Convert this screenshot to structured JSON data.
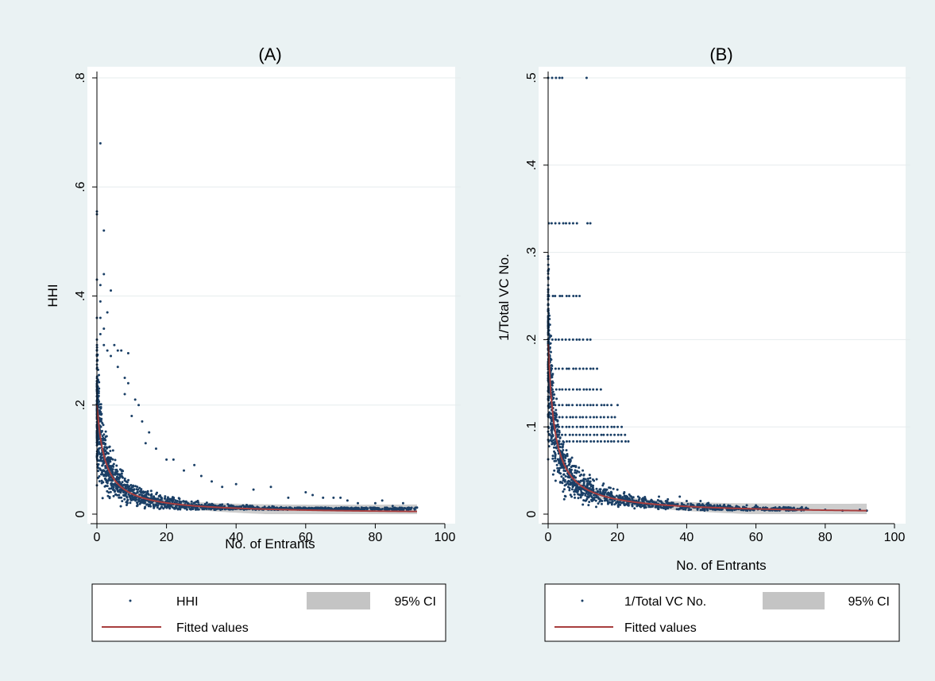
{
  "chart_data": [
    {
      "type": "scatter",
      "panel": "A",
      "title": "(A)",
      "xlabel": "No. of Entrants",
      "ylabel": "HHI",
      "xlim": [
        0,
        100
      ],
      "ylim": [
        0,
        0.8
      ],
      "x_ticks": [
        0,
        20,
        40,
        60,
        80,
        100
      ],
      "x_tick_labels": [
        "0",
        "20",
        "40",
        "60",
        "80",
        "100"
      ],
      "y_ticks": [
        0,
        0.2,
        0.4,
        0.6,
        0.8
      ],
      "y_tick_labels": [
        "0",
        ".2",
        ".4",
        ".6",
        ".8"
      ],
      "grid": "horizontal",
      "legend_position": "bottom",
      "legend": [
        "HHI",
        "95% CI",
        "Fitted values"
      ],
      "fit": {
        "form": "y = a/(x+b)",
        "a": 0.46,
        "b": 2.3,
        "x_range": [
          0,
          92
        ]
      },
      "series": [
        {
          "name": "HHI",
          "points": [
            [
              1,
              0.68
            ],
            [
              0,
              0.555
            ],
            [
              0,
              0.55
            ],
            [
              2,
              0.52
            ],
            [
              0,
              0.43
            ],
            [
              1,
              0.42
            ],
            [
              2,
              0.44
            ],
            [
              4,
              0.41
            ],
            [
              1,
              0.39
            ],
            [
              3,
              0.37
            ],
            [
              0,
              0.36
            ],
            [
              1,
              0.36
            ],
            [
              2,
              0.34
            ],
            [
              0,
              0.32
            ],
            [
              1,
              0.33
            ],
            [
              0,
              0.3
            ],
            [
              2,
              0.31
            ],
            [
              3,
              0.3
            ],
            [
              5,
              0.31
            ],
            [
              6,
              0.3
            ],
            [
              7,
              0.3
            ],
            [
              9,
              0.295
            ],
            [
              4,
              0.29
            ],
            [
              6,
              0.27
            ],
            [
              8,
              0.25
            ],
            [
              9,
              0.24
            ],
            [
              8,
              0.22
            ],
            [
              11,
              0.21
            ],
            [
              12,
              0.2
            ],
            [
              10,
              0.18
            ],
            [
              13,
              0.17
            ],
            [
              15,
              0.15
            ],
            [
              14,
              0.13
            ],
            [
              17,
              0.12
            ],
            [
              20,
              0.1
            ],
            [
              22,
              0.1
            ],
            [
              25,
              0.08
            ],
            [
              28,
              0.09
            ],
            [
              30,
              0.07
            ],
            [
              33,
              0.06
            ],
            [
              36,
              0.05
            ],
            [
              40,
              0.055
            ],
            [
              45,
              0.045
            ],
            [
              50,
              0.05
            ],
            [
              55,
              0.03
            ],
            [
              60,
              0.04
            ],
            [
              62,
              0.035
            ],
            [
              65,
              0.03
            ],
            [
              68,
              0.03
            ],
            [
              70,
              0.03
            ],
            [
              72,
              0.025
            ],
            [
              75,
              0.02
            ],
            [
              80,
              0.02
            ],
            [
              82,
              0.025
            ],
            [
              85,
              0.015
            ],
            [
              88,
              0.02
            ],
            [
              90,
              0.01
            ],
            [
              92,
              0.012
            ]
          ]
        }
      ]
    },
    {
      "type": "scatter",
      "panel": "B",
      "title": "(B)",
      "xlabel": "No. of Entrants",
      "ylabel": "1/Total VC No.",
      "xlim": [
        0,
        100
      ],
      "ylim": [
        0,
        0.5
      ],
      "x_ticks": [
        0,
        20,
        40,
        60,
        80,
        100
      ],
      "x_tick_labels": [
        "0",
        "20",
        "40",
        "60",
        "80",
        "100"
      ],
      "y_ticks": [
        0,
        0.1,
        0.2,
        0.3,
        0.4,
        0.5
      ],
      "y_tick_labels": [
        "0",
        ".1",
        ".2",
        ".3",
        ".4",
        ".5"
      ],
      "grid": "horizontal",
      "legend_position": "bottom",
      "legend": [
        "1/Total VC No.",
        "95% CI",
        "Fitted values"
      ],
      "fit": {
        "form": "y = a/(x+b)",
        "a": 0.37,
        "b": 1.9,
        "x_range": [
          0,
          92
        ]
      },
      "series": [
        {
          "name": "1/Total VC No.",
          "rows": [
            {
              "y": 0.5,
              "x": [
                0,
                1,
                2,
                3,
                4,
                11
              ]
            },
            {
              "y": 0.3333,
              "x": [
                0,
                1,
                2,
                3,
                4,
                5,
                6,
                7,
                8,
                11,
                12
              ]
            },
            {
              "y": 0.25,
              "x": [
                0,
                1,
                2,
                3,
                4,
                5,
                6,
                7,
                8,
                9
              ]
            },
            {
              "y": 0.2,
              "x": [
                0,
                1,
                2,
                3,
                4,
                5,
                6,
                7,
                8,
                9,
                10,
                11,
                12
              ]
            },
            {
              "y": 0.1667,
              "x": [
                0,
                1,
                2,
                3,
                4,
                5,
                6,
                7,
                8,
                9,
                10,
                11,
                12,
                13,
                14
              ]
            },
            {
              "y": 0.1429,
              "x": [
                0,
                1,
                2,
                3,
                4,
                5,
                6,
                7,
                8,
                9,
                10,
                11,
                12,
                13,
                14,
                15
              ]
            },
            {
              "y": 0.125,
              "x": [
                0,
                1,
                2,
                3,
                4,
                5,
                6,
                7,
                8,
                9,
                10,
                11,
                12,
                13,
                14,
                15,
                16,
                17,
                18,
                20
              ]
            },
            {
              "y": 0.1111,
              "x": [
                0,
                1,
                2,
                3,
                4,
                5,
                6,
                7,
                8,
                9,
                10,
                11,
                12,
                13,
                14,
                15,
                16,
                17,
                18,
                19
              ]
            },
            {
              "y": 0.1,
              "x": [
                0,
                1,
                2,
                3,
                4,
                5,
                6,
                7,
                8,
                9,
                10,
                11,
                12,
                13,
                14,
                15,
                16,
                17,
                18,
                19,
                20,
                21
              ]
            },
            {
              "y": 0.0909,
              "x": [
                0,
                1,
                2,
                3,
                4,
                5,
                6,
                7,
                8,
                9,
                10,
                11,
                12,
                13,
                14,
                15,
                16,
                17,
                18,
                19,
                20,
                21,
                22
              ]
            },
            {
              "y": 0.0833,
              "x": [
                0,
                1,
                2,
                3,
                4,
                5,
                6,
                7,
                8,
                9,
                10,
                11,
                12,
                13,
                14,
                15,
                16,
                17,
                18,
                19,
                20,
                21,
                22,
                23
              ]
            }
          ],
          "points": [
            [
              2,
              0.07
            ],
            [
              4,
              0.065
            ],
            [
              6,
              0.06
            ],
            [
              8,
              0.055
            ],
            [
              10,
              0.05
            ],
            [
              12,
              0.045
            ],
            [
              14,
              0.04
            ],
            [
              16,
              0.035
            ],
            [
              18,
              0.03
            ],
            [
              20,
              0.028
            ],
            [
              22,
              0.025
            ],
            [
              24,
              0.02
            ],
            [
              26,
              0.02
            ],
            [
              28,
              0.018
            ],
            [
              30,
              0.015
            ],
            [
              32,
              0.02
            ],
            [
              34,
              0.015
            ],
            [
              36,
              0.012
            ],
            [
              38,
              0.02
            ],
            [
              40,
              0.015
            ],
            [
              42,
              0.01
            ],
            [
              44,
              0.015
            ],
            [
              46,
              0.012
            ],
            [
              48,
              0.01
            ],
            [
              50,
              0.008
            ],
            [
              52,
              0.01
            ],
            [
              55,
              0.008
            ],
            [
              58,
              0.006
            ],
            [
              60,
              0.01
            ],
            [
              62,
              0.007
            ],
            [
              65,
              0.006
            ],
            [
              68,
              0.008
            ],
            [
              70,
              0.005
            ],
            [
              75,
              0.006
            ],
            [
              80,
              0.005
            ],
            [
              85,
              0.004
            ],
            [
              90,
              0.005
            ],
            [
              92,
              0.004
            ]
          ]
        }
      ]
    }
  ]
}
